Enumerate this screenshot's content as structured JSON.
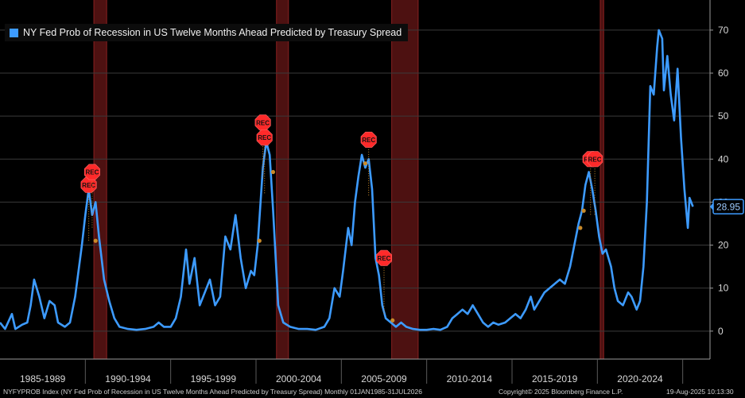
{
  "chart_data": {
    "type": "line",
    "series": [
      {
        "name": "NY Fed Prob of Recession in US Twelve Months Ahead Predicted by Treasury Spread",
        "color": "#3d9bff",
        "points": [
          [
            1985.0,
            2
          ],
          [
            1985.3,
            0.5
          ],
          [
            1985.7,
            4
          ],
          [
            1985.9,
            0.5
          ],
          [
            1986.3,
            1.5
          ],
          [
            1986.6,
            2
          ],
          [
            1986.8,
            6
          ],
          [
            1987.0,
            12
          ],
          [
            1987.3,
            8
          ],
          [
            1987.6,
            3
          ],
          [
            1987.9,
            7
          ],
          [
            1988.2,
            6
          ],
          [
            1988.4,
            2
          ],
          [
            1988.8,
            1
          ],
          [
            1989.1,
            2
          ],
          [
            1989.4,
            8
          ],
          [
            1989.8,
            20
          ],
          [
            1990.0,
            27
          ],
          [
            1990.2,
            33
          ],
          [
            1990.4,
            27
          ],
          [
            1990.6,
            30
          ],
          [
            1990.8,
            22
          ],
          [
            1991.1,
            12
          ],
          [
            1991.4,
            7
          ],
          [
            1991.7,
            3
          ],
          [
            1992.0,
            1
          ],
          [
            1992.5,
            0.5
          ],
          [
            1993.0,
            0.3
          ],
          [
            1993.5,
            0.5
          ],
          [
            1994.0,
            1
          ],
          [
            1994.3,
            2
          ],
          [
            1994.6,
            1
          ],
          [
            1995.0,
            1
          ],
          [
            1995.3,
            3
          ],
          [
            1995.6,
            8
          ],
          [
            1995.9,
            19
          ],
          [
            1996.1,
            11
          ],
          [
            1996.4,
            17
          ],
          [
            1996.7,
            6
          ],
          [
            1997.0,
            9
          ],
          [
            1997.3,
            12
          ],
          [
            1997.6,
            6
          ],
          [
            1997.9,
            8
          ],
          [
            1998.2,
            22
          ],
          [
            1998.5,
            19
          ],
          [
            1998.8,
            27
          ],
          [
            1999.1,
            17
          ],
          [
            1999.4,
            10
          ],
          [
            1999.7,
            14
          ],
          [
            1999.9,
            13
          ],
          [
            2000.1,
            20
          ],
          [
            2000.4,
            38
          ],
          [
            2000.6,
            44
          ],
          [
            2000.8,
            41
          ],
          [
            2001.0,
            28
          ],
          [
            2001.3,
            6
          ],
          [
            2001.6,
            2
          ],
          [
            2002.0,
            1
          ],
          [
            2002.5,
            0.5
          ],
          [
            2003.0,
            0.5
          ],
          [
            2003.5,
            0.3
          ],
          [
            2004.0,
            1
          ],
          [
            2004.3,
            3
          ],
          [
            2004.6,
            10
          ],
          [
            2004.9,
            8
          ],
          [
            2005.1,
            14
          ],
          [
            2005.4,
            24
          ],
          [
            2005.6,
            20
          ],
          [
            2005.8,
            30
          ],
          [
            2006.0,
            36
          ],
          [
            2006.2,
            41
          ],
          [
            2006.4,
            38
          ],
          [
            2006.6,
            40
          ],
          [
            2006.8,
            33
          ],
          [
            2007.0,
            17
          ],
          [
            2007.2,
            13
          ],
          [
            2007.4,
            6
          ],
          [
            2007.6,
            3
          ],
          [
            2007.9,
            2
          ],
          [
            2008.2,
            1
          ],
          [
            2008.5,
            2
          ],
          [
            2008.8,
            1
          ],
          [
            2009.2,
            0.5
          ],
          [
            2009.6,
            0.3
          ],
          [
            2010.0,
            0.3
          ],
          [
            2010.4,
            0.5
          ],
          [
            2010.8,
            0.3
          ],
          [
            2011.2,
            1
          ],
          [
            2011.5,
            3
          ],
          [
            2011.8,
            4
          ],
          [
            2012.1,
            5
          ],
          [
            2012.4,
            4
          ],
          [
            2012.7,
            6
          ],
          [
            2013.0,
            4
          ],
          [
            2013.3,
            2
          ],
          [
            2013.6,
            1
          ],
          [
            2013.9,
            2
          ],
          [
            2014.2,
            1.5
          ],
          [
            2014.6,
            2
          ],
          [
            2014.9,
            3
          ],
          [
            2015.2,
            4
          ],
          [
            2015.5,
            3
          ],
          [
            2015.8,
            5
          ],
          [
            2016.1,
            8
          ],
          [
            2016.3,
            5
          ],
          [
            2016.6,
            7
          ],
          [
            2016.9,
            9
          ],
          [
            2017.2,
            10
          ],
          [
            2017.5,
            11
          ],
          [
            2017.8,
            12
          ],
          [
            2018.1,
            11
          ],
          [
            2018.4,
            15
          ],
          [
            2018.7,
            21
          ],
          [
            2018.9,
            25
          ],
          [
            2019.1,
            28
          ],
          [
            2019.3,
            34
          ],
          [
            2019.5,
            37
          ],
          [
            2019.7,
            33
          ],
          [
            2019.9,
            28
          ],
          [
            2020.1,
            22
          ],
          [
            2020.3,
            18
          ],
          [
            2020.5,
            19
          ],
          [
            2020.8,
            15
          ],
          [
            2021.0,
            10
          ],
          [
            2021.2,
            7
          ],
          [
            2021.5,
            6
          ],
          [
            2021.8,
            9
          ],
          [
            2022.0,
            8
          ],
          [
            2022.3,
            5
          ],
          [
            2022.5,
            7
          ],
          [
            2022.7,
            15
          ],
          [
            2022.9,
            30
          ],
          [
            2023.1,
            57
          ],
          [
            2023.3,
            55
          ],
          [
            2023.5,
            66
          ],
          [
            2023.6,
            70
          ],
          [
            2023.8,
            68
          ],
          [
            2023.9,
            56
          ],
          [
            2024.1,
            64
          ],
          [
            2024.3,
            55
          ],
          [
            2024.5,
            49
          ],
          [
            2024.7,
            61
          ],
          [
            2024.9,
            45
          ],
          [
            2025.1,
            33
          ],
          [
            2025.3,
            24
          ],
          [
            2025.4,
            31
          ],
          [
            2025.6,
            28.95
          ]
        ]
      }
    ],
    "recession_bands": [
      [
        1990.5,
        1991.25
      ],
      [
        2001.2,
        2001.9
      ],
      [
        2007.95,
        2009.5
      ],
      [
        2020.17,
        2020.37
      ]
    ],
    "rec_markers": [
      {
        "x": 1990.2,
        "y": 34,
        "label": "REC"
      },
      {
        "x": 1990.4,
        "y": 37,
        "label": "REC"
      },
      {
        "x": 2000.4,
        "y": 48.5,
        "label": "REC"
      },
      {
        "x": 2000.5,
        "y": 45,
        "label": "REC"
      },
      {
        "x": 2006.6,
        "y": 44.5,
        "label": "REC"
      },
      {
        "x": 2007.5,
        "y": 17,
        "label": "REC"
      },
      {
        "x": 2019.6,
        "y": 40,
        "label": "REC"
      },
      {
        "x": 2019.85,
        "y": 40,
        "label": "REC"
      }
    ],
    "dots": [
      [
        1990.6,
        21
      ],
      [
        2000.2,
        21
      ],
      [
        2001.0,
        37
      ],
      [
        2006.4,
        39
      ],
      [
        2008.0,
        2.5
      ],
      [
        2019.0,
        24
      ],
      [
        2019.2,
        28
      ]
    ],
    "xlim": [
      1985,
      2026.6
    ],
    "ylim": [
      -6.5,
      77
    ],
    "y_ticks": [
      0,
      10,
      20,
      30,
      40,
      50,
      60,
      70
    ],
    "x_tick_labels": [
      {
        "label": "1985-1989",
        "x": 1987.5
      },
      {
        "label": "1990-1994",
        "x": 1992.5
      },
      {
        "label": "1995-1999",
        "x": 1997.5
      },
      {
        "label": "2000-2004",
        "x": 2002.5
      },
      {
        "label": "2005-2009",
        "x": 2007.5
      },
      {
        "label": "2010-2014",
        "x": 2012.5
      },
      {
        "label": "2015-2019",
        "x": 2017.5
      },
      {
        "label": "2020-2024",
        "x": 2022.5
      }
    ],
    "x_separators": [
      1990,
      1995,
      2000,
      2005,
      2010,
      2015,
      2020,
      2025
    ],
    "last_value": "28.95",
    "legend": "NY Fed Prob of Recession in US Twelve Months Ahead Predicted by Treasury Spread",
    "grid": true,
    "colors": {
      "line": "#3d9bff",
      "band": "#5a1414",
      "marker": "#ff2a2a",
      "dot": "#c98a2a",
      "grid": "#3a3a3a"
    }
  },
  "footer": {
    "left": "NYFYPROB Index (NY Fed Prob of Recession in US Twelve Months Ahead Predicted by Treasury Spread)  Monthly 01JAN1985-31JUL2026",
    "center": "Copyright© 2025 Bloomberg Finance L.P.",
    "right": "19-Aug-2025 10:13:30"
  }
}
